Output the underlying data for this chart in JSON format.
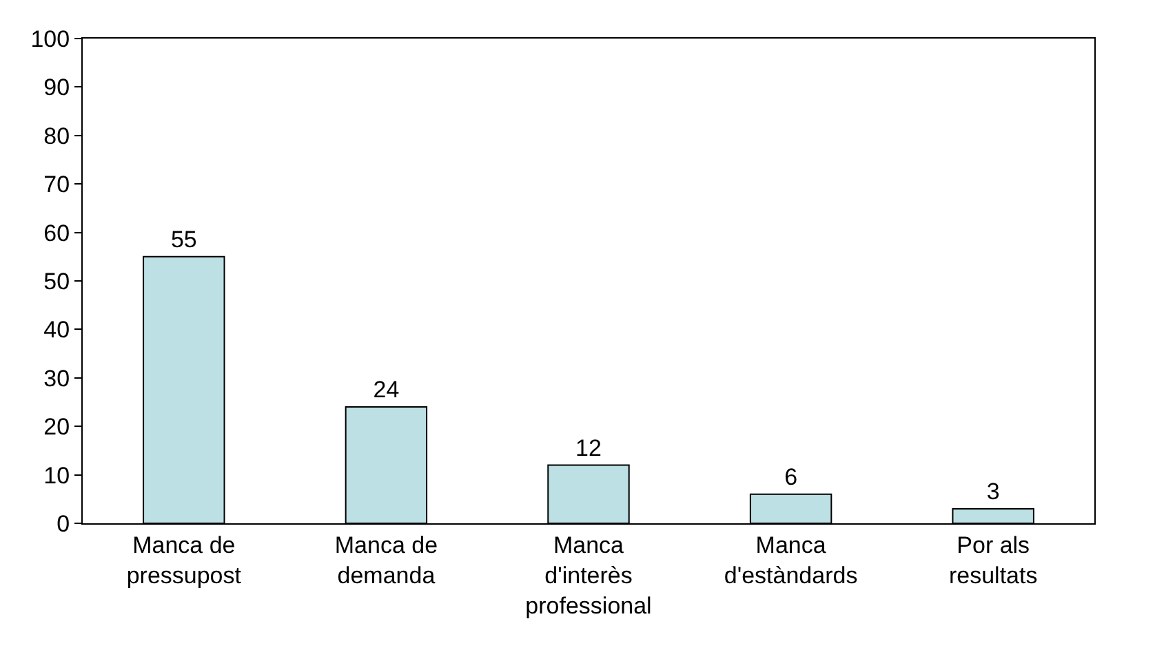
{
  "chart_data": {
    "type": "bar",
    "categories": [
      "Manca de pressupost",
      "Manca de demanda",
      "Manca d'interès professional",
      "Manca d'estàndards",
      "Por als resultats"
    ],
    "values": [
      55,
      24,
      12,
      6,
      3
    ],
    "color": "#bde0e4",
    "ylim": [
      0,
      100
    ],
    "yticks": [
      0,
      10,
      20,
      30,
      40,
      50,
      60,
      70,
      80,
      90,
      100
    ],
    "data_labels": true
  }
}
